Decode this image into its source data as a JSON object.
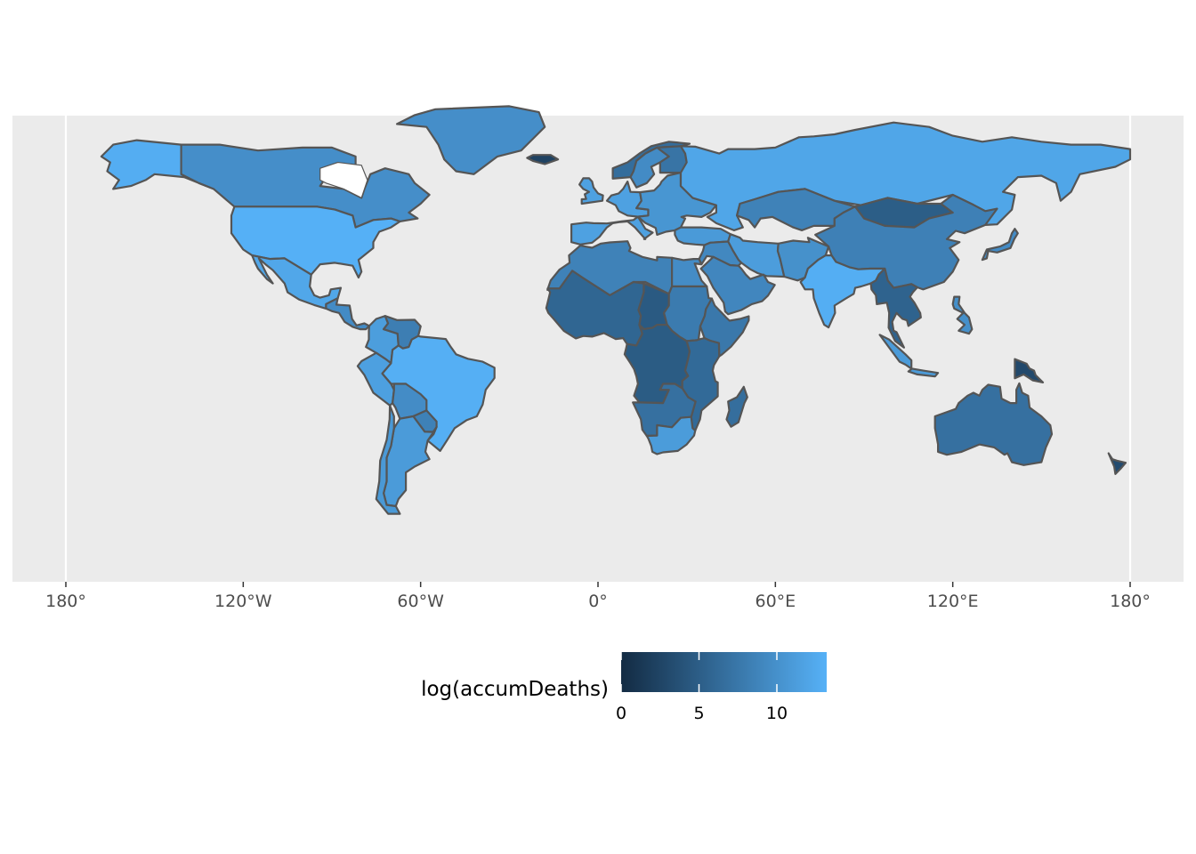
{
  "chart_data": {
    "type": "choropleth",
    "projection": "equirectangular",
    "xlabel": "",
    "ylabel": "",
    "x_ticks": [
      {
        "lon": -180,
        "label": "180°"
      },
      {
        "lon": -120,
        "label": "120°W"
      },
      {
        "lon": -60,
        "label": "60°W"
      },
      {
        "lon": 0,
        "label": "0°"
      },
      {
        "lon": 60,
        "label": "60°E"
      },
      {
        "lon": 120,
        "label": "120°E"
      },
      {
        "lon": 180,
        "label": "180°"
      }
    ],
    "grid": true,
    "panel_background": "#ebebeb",
    "grid_color": "#ffffff",
    "border_color": "#555555",
    "legend": {
      "title": "log(accumDeaths)",
      "placement": "bottom",
      "color_low": "#132b43",
      "color_high": "#56b1f7",
      "range": [
        0,
        13.2
      ],
      "ticks": [
        {
          "value": 0,
          "label": "0"
        },
        {
          "value": 5,
          "label": "5"
        },
        {
          "value": 10,
          "label": "10"
        }
      ]
    },
    "regions": [
      {
        "name": "Alaska (USA)",
        "value": 12.8
      },
      {
        "name": "Canada",
        "value": 9.8
      },
      {
        "name": "Greenland",
        "value": 9.8
      },
      {
        "name": "United States",
        "value": 13.1
      },
      {
        "name": "Mexico",
        "value": 12.2
      },
      {
        "name": "Central America",
        "value": 9.5
      },
      {
        "name": "Colombia",
        "value": 11.3
      },
      {
        "name": "Venezuela",
        "value": 8.2
      },
      {
        "name": "Brazil",
        "value": 13.0
      },
      {
        "name": "Peru",
        "value": 11.5
      },
      {
        "name": "Bolivia",
        "value": 9.6
      },
      {
        "name": "Paraguay",
        "value": 8.5
      },
      {
        "name": "Argentina",
        "value": 11.0
      },
      {
        "name": "Chile",
        "value": 10.8
      },
      {
        "name": "Iceland",
        "value": 2.3
      },
      {
        "name": "Norway",
        "value": 6.5
      },
      {
        "name": "Sweden",
        "value": 9.5
      },
      {
        "name": "Finland",
        "value": 7.2
      },
      {
        "name": "United Kingdom",
        "value": 11.6
      },
      {
        "name": "Western Europe",
        "value": 11.6
      },
      {
        "name": "Eastern Europe",
        "value": 10.5
      },
      {
        "name": "Russia",
        "value": 12.1
      },
      {
        "name": "Kazakhstan",
        "value": 8.6
      },
      {
        "name": "Mongolia",
        "value": 5.0
      },
      {
        "name": "China",
        "value": 8.4
      },
      {
        "name": "Turkey",
        "value": 10.9
      },
      {
        "name": "Iran",
        "value": 11.2
      },
      {
        "name": "Middle East",
        "value": 9.2
      },
      {
        "name": "Saudi Arabia",
        "value": 9.0
      },
      {
        "name": "Pakistan",
        "value": 10.0
      },
      {
        "name": "India",
        "value": 12.9
      },
      {
        "name": "Southeast Asia",
        "value": 5.5
      },
      {
        "name": "Indonesia",
        "value": 11.0
      },
      {
        "name": "Philippines",
        "value": 9.9
      },
      {
        "name": "Japan",
        "value": 9.5
      },
      {
        "name": "Papua New Guinea",
        "value": 3.0
      },
      {
        "name": "Australia",
        "value": 6.8
      },
      {
        "name": "New Zealand",
        "value": 3.2
      },
      {
        "name": "North Africa",
        "value": 8.6
      },
      {
        "name": "Egypt",
        "value": 9.6
      },
      {
        "name": "West Africa",
        "value": 5.8
      },
      {
        "name": "Chad",
        "value": 4.6
      },
      {
        "name": "Sudan",
        "value": 7.9
      },
      {
        "name": "Ethiopia",
        "value": 7.6
      },
      {
        "name": "Central Africa",
        "value": 4.8
      },
      {
        "name": "East Africa",
        "value": 6.2
      },
      {
        "name": "Southern Africa (inland)",
        "value": 6.8
      },
      {
        "name": "South Africa",
        "value": 11.1
      },
      {
        "name": "Madagascar",
        "value": 6.6
      }
    ]
  }
}
